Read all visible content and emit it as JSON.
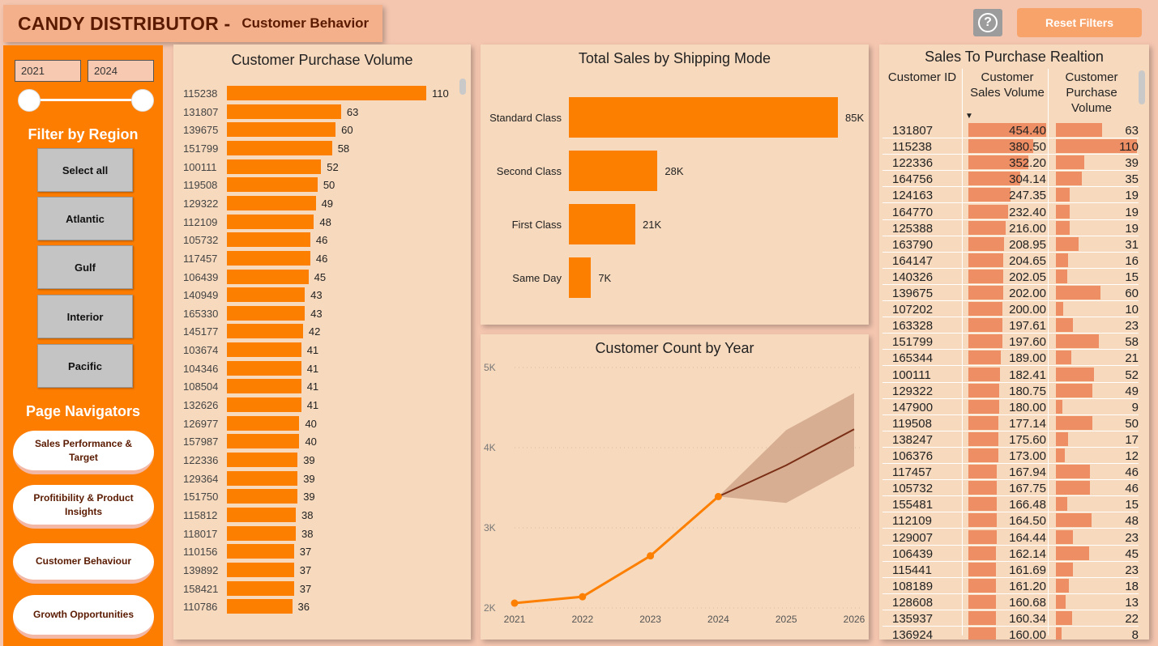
{
  "header": {
    "title": "CANDY DISTRIBUTOR -",
    "subtitle": "Customer Behavior",
    "help_label": "?",
    "reset_label": "Reset Filters"
  },
  "sidebar": {
    "year_start": "2021",
    "year_end": "2024",
    "filter_title": "Filter by Region",
    "regions": [
      "Select all",
      "Atlantic",
      "Gulf",
      "Interior",
      "Pacific"
    ],
    "nav_title": "Page Navigators",
    "nav": [
      {
        "label": "Sales Performance & Target",
        "active": false
      },
      {
        "label": "Profitibility & Product Insights",
        "active": false
      },
      {
        "label": "Customer Behaviour",
        "active": true
      },
      {
        "label": "Growth Opportunities",
        "active": false
      }
    ]
  },
  "colors": {
    "accent": "#fd7f00",
    "panel": "#f7d9bd",
    "background": "#f4c6b0",
    "forecast_band": "#d3a88c",
    "forecast_line": "#7a2e16",
    "table_bar": "#ee8e64"
  },
  "chart_data": [
    {
      "type": "bar",
      "title": "Customer Purchase Volume",
      "orientation": "horizontal",
      "categories": [
        "115238",
        "131807",
        "139675",
        "151799",
        "100111",
        "119508",
        "129322",
        "112109",
        "105732",
        "117457",
        "106439",
        "140949",
        "165330",
        "145177",
        "103674",
        "104346",
        "108504",
        "132626",
        "126977",
        "157987",
        "122336",
        "129364",
        "151750",
        "115812",
        "118017",
        "110156",
        "139892",
        "158421",
        "110786"
      ],
      "values": [
        110,
        63,
        60,
        58,
        52,
        50,
        49,
        48,
        46,
        46,
        45,
        43,
        43,
        42,
        41,
        41,
        41,
        41,
        40,
        40,
        39,
        39,
        39,
        38,
        38,
        37,
        37,
        37,
        36
      ]
    },
    {
      "type": "bar",
      "title": "Total Sales by Shipping Mode",
      "orientation": "horizontal",
      "categories": [
        "Standard Class",
        "Second Class",
        "First Class",
        "Same Day"
      ],
      "values": [
        85000,
        28000,
        21000,
        7000
      ],
      "value_labels": [
        "85K",
        "28K",
        "21K",
        "7K"
      ]
    },
    {
      "type": "line",
      "title": "Customer Count by Year",
      "x": [
        "2021",
        "2022",
        "2023",
        "2024",
        "2025",
        "2026"
      ],
      "series": [
        {
          "values": [
            2060,
            2140,
            2650,
            3390,
            null,
            null
          ]
        },
        {
          "values": [
            null,
            null,
            null,
            3390,
            3780,
            4230
          ]
        }
      ],
      "forecast_band": {
        "x": [
          "2024",
          "2025",
          "2026"
        ],
        "upper": [
          3390,
          4220,
          4680
        ],
        "lower": [
          3390,
          3310,
          3770
        ]
      },
      "yticks": [
        "2K",
        "3K",
        "4K",
        "5K"
      ],
      "ylim": [
        2000,
        5000
      ],
      "grid": true
    },
    {
      "type": "table",
      "title": "Sales To Purchase Realtion",
      "columns": [
        "Customer ID",
        "Customer Sales Volume",
        "Customer Purchase Volume"
      ],
      "sort_indicator": "▼",
      "rows": [
        [
          "131807",
          "454.40",
          "63"
        ],
        [
          "115238",
          "380.50",
          "110"
        ],
        [
          "122336",
          "352.20",
          "39"
        ],
        [
          "164756",
          "304.14",
          "35"
        ],
        [
          "124163",
          "247.35",
          "19"
        ],
        [
          "164770",
          "232.40",
          "19"
        ],
        [
          "125388",
          "216.00",
          "19"
        ],
        [
          "163790",
          "208.95",
          "31"
        ],
        [
          "164147",
          "204.65",
          "16"
        ],
        [
          "140326",
          "202.05",
          "15"
        ],
        [
          "139675",
          "202.00",
          "60"
        ],
        [
          "107202",
          "200.00",
          "10"
        ],
        [
          "163328",
          "197.61",
          "23"
        ],
        [
          "151799",
          "197.60",
          "58"
        ],
        [
          "165344",
          "189.00",
          "21"
        ],
        [
          "100111",
          "182.41",
          "52"
        ],
        [
          "129322",
          "180.75",
          "49"
        ],
        [
          "147900",
          "180.00",
          "9"
        ],
        [
          "119508",
          "177.14",
          "50"
        ],
        [
          "138247",
          "175.60",
          "17"
        ],
        [
          "106376",
          "173.00",
          "12"
        ],
        [
          "117457",
          "167.94",
          "46"
        ],
        [
          "105732",
          "167.75",
          "46"
        ],
        [
          "155481",
          "166.48",
          "15"
        ],
        [
          "112109",
          "164.50",
          "48"
        ],
        [
          "129007",
          "164.44",
          "23"
        ],
        [
          "106439",
          "162.14",
          "45"
        ],
        [
          "115441",
          "161.69",
          "23"
        ],
        [
          "108189",
          "161.20",
          "18"
        ],
        [
          "128608",
          "160.68",
          "13"
        ],
        [
          "135937",
          "160.34",
          "22"
        ],
        [
          "136924",
          "160.00",
          "8"
        ]
      ]
    }
  ]
}
